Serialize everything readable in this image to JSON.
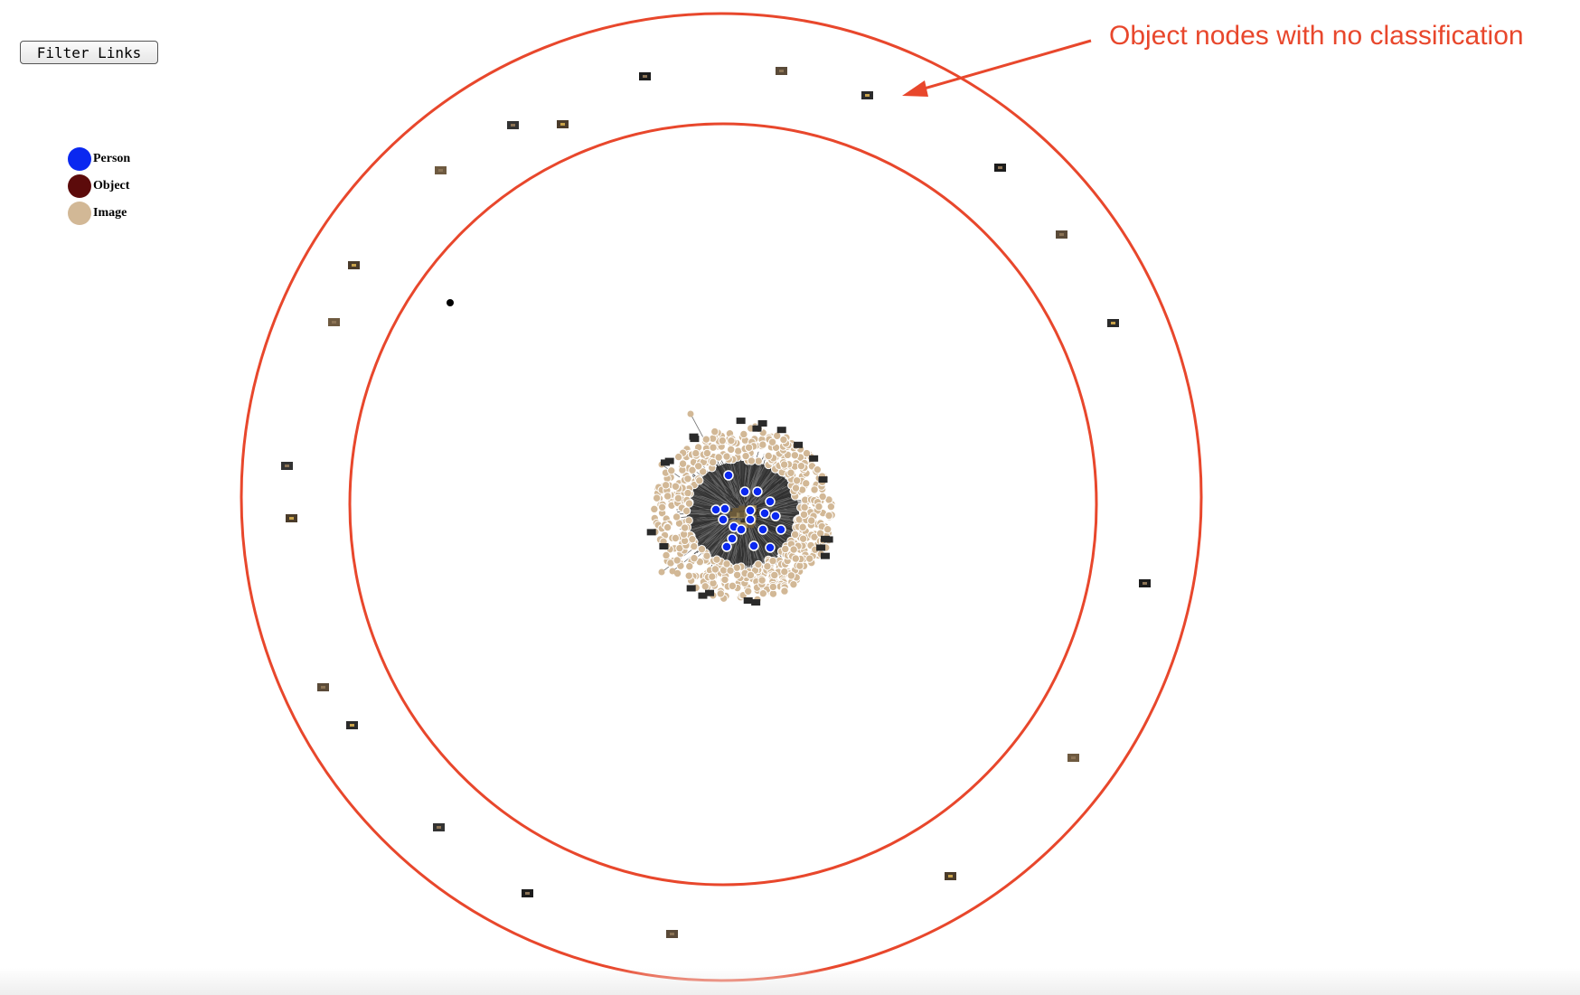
{
  "toolbar": {
    "filter_label": "Filter Links"
  },
  "legend": {
    "items": [
      {
        "label": "Person",
        "color": "#0a28f0"
      },
      {
        "label": "Object",
        "color": "#5c0b0b"
      },
      {
        "label": "Image",
        "color": "#d2b896"
      }
    ]
  },
  "annotation": {
    "text": "Object nodes with no classification",
    "color": "#e8472c"
  }
}
